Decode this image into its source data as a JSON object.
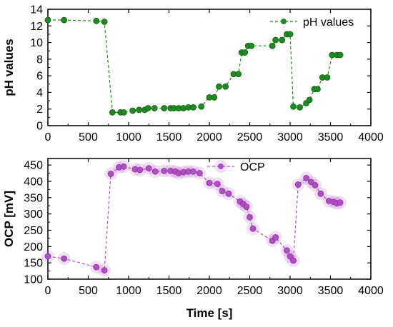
{
  "chart_data": [
    {
      "type": "scatter",
      "xlabel": "",
      "ylabel": "pH values",
      "xlim": [
        0,
        4000
      ],
      "ylim": [
        0,
        14
      ],
      "xticks": [
        0,
        500,
        1000,
        1500,
        2000,
        2500,
        3000,
        3500,
        4000
      ],
      "yticks": [
        0,
        2,
        4,
        6,
        8,
        10,
        12,
        14
      ],
      "grid": false,
      "legend": "top-right",
      "connector": "dashed",
      "series": [
        {
          "name": "pH values",
          "color": "#1f8a1f",
          "x": [
            0,
            200,
            600,
            700,
            800,
            900,
            940,
            1050,
            1130,
            1200,
            1240,
            1320,
            1440,
            1520,
            1560,
            1620,
            1680,
            1740,
            1800,
            1900,
            2000,
            2060,
            2120,
            2200,
            2300,
            2360,
            2400,
            2440,
            2480,
            2520,
            2780,
            2820,
            2900,
            2960,
            3000,
            3040,
            3120,
            3200,
            3240,
            3300,
            3340,
            3400,
            3460,
            3520,
            3580,
            3620
          ],
          "y": [
            12.7,
            12.7,
            12.6,
            12.5,
            1.6,
            1.6,
            1.6,
            1.8,
            1.9,
            1.9,
            2.1,
            2.1,
            2.1,
            2.1,
            2.1,
            2.1,
            2.1,
            2.2,
            2.2,
            2.3,
            3.4,
            3.4,
            4.7,
            4.7,
            6.2,
            6.2,
            8.8,
            8.8,
            9.6,
            9.6,
            9.6,
            10.3,
            10.3,
            11.0,
            11.0,
            2.3,
            2.2,
            2.7,
            3.1,
            4.4,
            4.4,
            5.8,
            5.8,
            8.5,
            8.5,
            8.5
          ]
        }
      ]
    },
    {
      "type": "scatter",
      "xlabel": "Time [s]",
      "ylabel": "OCP [mV]",
      "xlim": [
        0,
        4000
      ],
      "ylim": [
        100,
        470
      ],
      "xticks": [
        0,
        500,
        1000,
        1500,
        2000,
        2500,
        3000,
        3500,
        4000
      ],
      "yticks": [
        100,
        150,
        200,
        250,
        300,
        350,
        400,
        450
      ],
      "grid": false,
      "legend": "top-center",
      "connector": "dashed",
      "series": [
        {
          "name": "OCP",
          "color": "#b04fc4",
          "x": [
            0,
            200,
            600,
            700,
            780,
            880,
            940,
            1080,
            1140,
            1250,
            1330,
            1440,
            1520,
            1580,
            1620,
            1680,
            1740,
            1800,
            1880,
            2000,
            2100,
            2160,
            2240,
            2380,
            2420,
            2460,
            2500,
            2540,
            2780,
            2820,
            2960,
            3000,
            3040,
            3100,
            3200,
            3260,
            3310,
            3380,
            3480,
            3540,
            3580,
            3620
          ],
          "y": [
            170,
            163,
            137,
            127,
            423,
            443,
            445,
            437,
            435,
            440,
            430,
            432,
            432,
            430,
            425,
            428,
            430,
            430,
            425,
            395,
            392,
            370,
            362,
            338,
            330,
            322,
            290,
            255,
            218,
            228,
            188,
            170,
            157,
            390,
            410,
            398,
            388,
            362,
            340,
            337,
            333,
            335
          ]
        }
      ]
    }
  ]
}
